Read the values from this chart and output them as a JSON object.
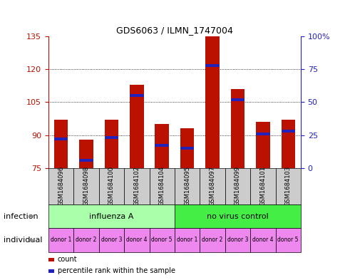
{
  "title": "GDS6063 / ILMN_1747004",
  "samples": [
    "GSM1684096",
    "GSM1684098",
    "GSM1684100",
    "GSM1684102",
    "GSM1684104",
    "GSM1684095",
    "GSM1684097",
    "GSM1684099",
    "GSM1684101",
    "GSM1684103"
  ],
  "bar_heights": [
    97,
    88,
    97,
    113,
    95,
    93,
    135,
    111,
    96,
    97
  ],
  "percentile_values": [
    22,
    6,
    23,
    55,
    17,
    15,
    78,
    52,
    26,
    28
  ],
  "ylim": [
    75,
    135
  ],
  "yticks": [
    75,
    90,
    105,
    120,
    135
  ],
  "right_yticks": [
    0,
    25,
    50,
    75,
    100
  ],
  "right_ylabels": [
    "0",
    "25",
    "50",
    "75",
    "100%"
  ],
  "bar_color": "#bb1100",
  "blue_color": "#2222bb",
  "infection_labels": [
    "influenza A",
    "no virus control"
  ],
  "infection_colors": [
    "#aaffaa",
    "#44ee44"
  ],
  "individual_labels": [
    "donor 1",
    "donor 2",
    "donor 3",
    "donor 4",
    "donor 5",
    "donor 1",
    "donor 2",
    "donor 3",
    "donor 4",
    "donor 5"
  ],
  "individual_color": "#ee88ee",
  "sample_box_color": "#cccccc",
  "bg_color": "#ffffff",
  "row_label_infection": "infection",
  "row_label_individual": "individual",
  "legend_count": "count",
  "legend_percentile": "percentile rank within the sample",
  "bar_width": 0.55
}
